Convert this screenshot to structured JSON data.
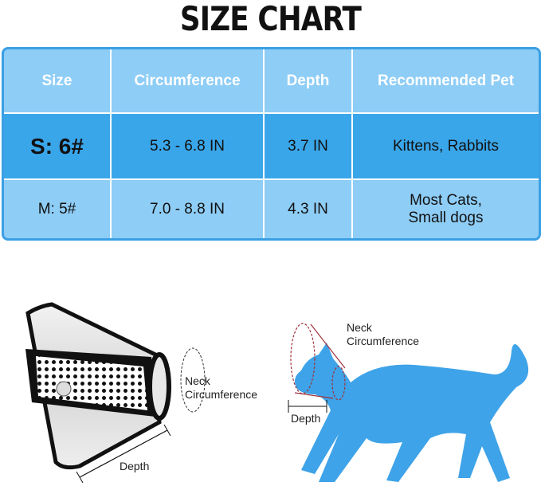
{
  "title": "SIZE CHART",
  "table": {
    "headers": [
      "Size",
      "Circumference",
      "Depth",
      "Recommended Pet"
    ],
    "rows": [
      {
        "size": "S: 6#",
        "circumference": "5.3 - 6.8 IN",
        "depth": "3.7 IN",
        "pet": "Kittens, Rabbits"
      },
      {
        "size": "M: 5#",
        "circumference": "7.0 - 8.8 IN",
        "depth": "4.3 IN",
        "pet_line1": "Most Cats,",
        "pet_line2": "Small dogs"
      }
    ]
  },
  "diagram": {
    "cone_neck_label_1": "Neck",
    "cone_neck_label_2": "Circumference",
    "cone_depth_label": "Depth",
    "cat_neck_label_1": "Neck",
    "cat_neck_label_2": "Circumference",
    "cat_depth_label": "Depth"
  },
  "colors": {
    "header_bg": "#8ecdf6",
    "highlight_row": "#3aa6ea",
    "border": "#3a9fe4",
    "cat": "#3ea3e8",
    "outline": "#a0323c"
  }
}
